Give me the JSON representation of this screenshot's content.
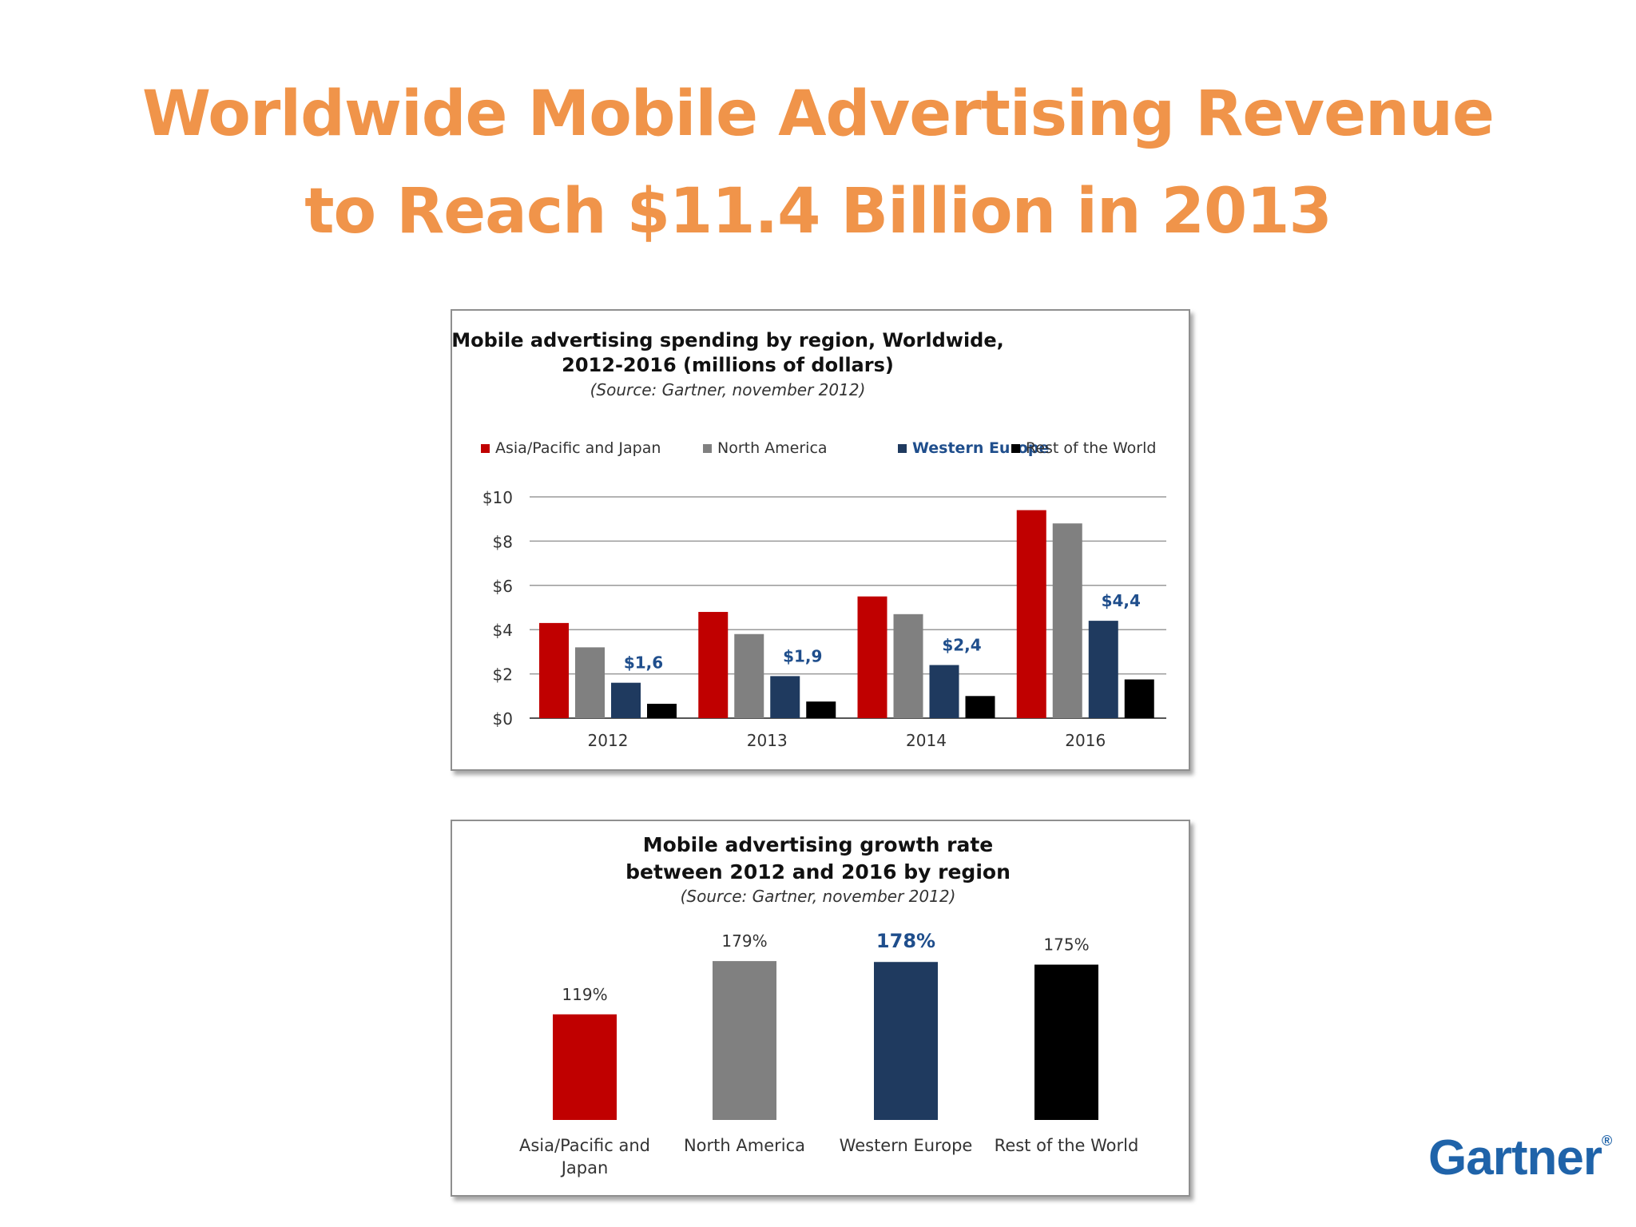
{
  "slide": {
    "title_line1": "Worldwide Mobile Advertising Revenue",
    "title_line2": "to Reach $11.4 Billion in 2013",
    "logo": "Gartner",
    "logo_mark": "®"
  },
  "colors": {
    "title": "#f0944a",
    "asia": "#c00000",
    "north_america": "#808080",
    "western_europe": "#1f3a5f",
    "rest_of_world": "#000000",
    "highlight_label": "#1f4e8c",
    "logo": "#1f63a9"
  },
  "chart_data": [
    {
      "type": "bar",
      "title_line1": "Mobile advertising spending by region, Worldwide,",
      "title_line2": "2012-2016 (millions of dollars)",
      "source": "(Source: Gartner, november 2012)",
      "categories": [
        "2012",
        "2013",
        "2014",
        "2016"
      ],
      "series": [
        {
          "name": "Asia/Pacific and Japan",
          "values": [
            4.3,
            4.8,
            5.5,
            9.4
          ]
        },
        {
          "name": "North America",
          "values": [
            3.2,
            3.8,
            4.7,
            8.8
          ]
        },
        {
          "name": "Western Europe",
          "values": [
            1.6,
            1.9,
            2.4,
            4.4
          ],
          "labels": [
            "$1,6",
            "$1,9",
            "$2,4",
            "$4,4"
          ]
        },
        {
          "name": "Rest of the World",
          "values": [
            0.65,
            0.75,
            1.0,
            1.75
          ]
        }
      ],
      "yticks": [
        "$0",
        "$2",
        "$4",
        "$6",
        "$8",
        "$10"
      ],
      "ylim": [
        0,
        10
      ],
      "grid": true,
      "legend": "top"
    },
    {
      "type": "bar",
      "title_line1": "Mobile advertising growth rate",
      "title_line2": "between 2012 and 2016 by region",
      "source": "(Source: Gartner, november 2012)",
      "categories": [
        "Asia/Pacific and Japan",
        "North America",
        "Western Europe",
        "Rest of the World"
      ],
      "values": [
        119,
        179,
        178,
        175
      ],
      "labels": [
        "119%",
        "179%",
        "178%",
        "175%"
      ],
      "ylim": [
        0,
        180
      ]
    }
  ]
}
